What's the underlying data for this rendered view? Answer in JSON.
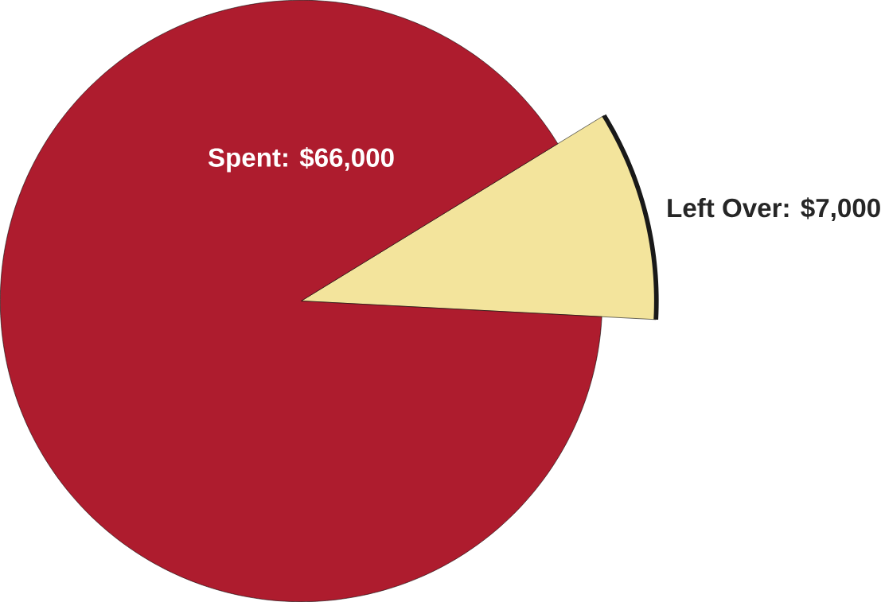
{
  "chart_data": {
    "type": "pie",
    "categories": [
      "Spent: $66,000",
      "Left Over: $7,000"
    ],
    "values": [
      66000,
      7000
    ],
    "colors": [
      "#ae1c2e",
      "#f3e49c"
    ]
  }
}
